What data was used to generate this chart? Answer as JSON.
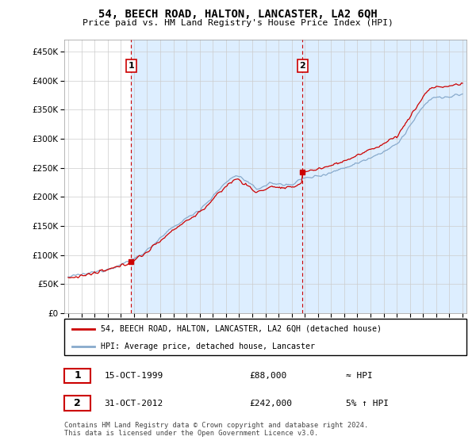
{
  "title": "54, BEECH ROAD, HALTON, LANCASTER, LA2 6QH",
  "subtitle": "Price paid vs. HM Land Registry's House Price Index (HPI)",
  "ylim": [
    0,
    470000
  ],
  "yticks": [
    0,
    50000,
    100000,
    150000,
    200000,
    250000,
    300000,
    350000,
    400000,
    450000
  ],
  "ytick_labels": [
    "£0",
    "£50K",
    "£100K",
    "£150K",
    "£200K",
    "£250K",
    "£300K",
    "£350K",
    "£400K",
    "£450K"
  ],
  "xlim_left": 1994.7,
  "xlim_right": 2025.3,
  "sale1_date_num": 1999.79,
  "sale1_price": 88000,
  "sale2_date_num": 2012.83,
  "sale2_price": 242000,
  "legend_line1": "54, BEECH ROAD, HALTON, LANCASTER, LA2 6QH (detached house)",
  "legend_line2": "HPI: Average price, detached house, Lancaster",
  "table_row1_num": "1",
  "table_row1_date": "15-OCT-1999",
  "table_row1_price": "£88,000",
  "table_row1_hpi": "≈ HPI",
  "table_row2_num": "2",
  "table_row2_date": "31-OCT-2012",
  "table_row2_price": "£242,000",
  "table_row2_hpi": "5% ↑ HPI",
  "footer": "Contains HM Land Registry data © Crown copyright and database right 2024.\nThis data is licensed under the Open Government Licence v3.0.",
  "price_color": "#cc0000",
  "hpi_color": "#88aacc",
  "shade_color": "#ddeeff",
  "background_color": "#ffffff",
  "grid_color": "#cccccc",
  "seed": 12345,
  "noise_hpi": 1800,
  "noise_price": 2200
}
